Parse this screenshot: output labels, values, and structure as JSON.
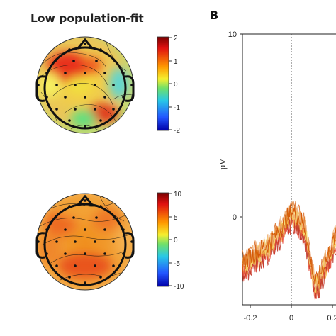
{
  "panel_a": {
    "title": "Low population-fit",
    "topomaps": [
      {
        "colorbar": {
          "ticks": [
            "2",
            "1",
            "0",
            "-1",
            "-2"
          ],
          "range": [
            -2,
            2
          ]
        }
      },
      {
        "colorbar": {
          "ticks": [
            "10",
            "5",
            "0",
            "-5",
            "-10"
          ],
          "range": [
            -10,
            10
          ]
        }
      }
    ]
  },
  "panel_b": {
    "label": "B"
  },
  "chart_data": {
    "type": "line",
    "ylabel": "μV",
    "xlabel": "",
    "yticks": [
      "10",
      "0"
    ],
    "xticks": [
      "-0.2",
      "0",
      "0.2"
    ],
    "ylim": [
      -2,
      10
    ],
    "xlim": [
      -0.25,
      0.25
    ],
    "onset_line_x": 0,
    "series_colors": [
      "#f4d03f",
      "#f5b041",
      "#eb984e",
      "#e67e22",
      "#dc7633",
      "#e74c3c",
      "#c0392b",
      "#f7dc6f",
      "#f0b27a",
      "#d35400"
    ]
  }
}
